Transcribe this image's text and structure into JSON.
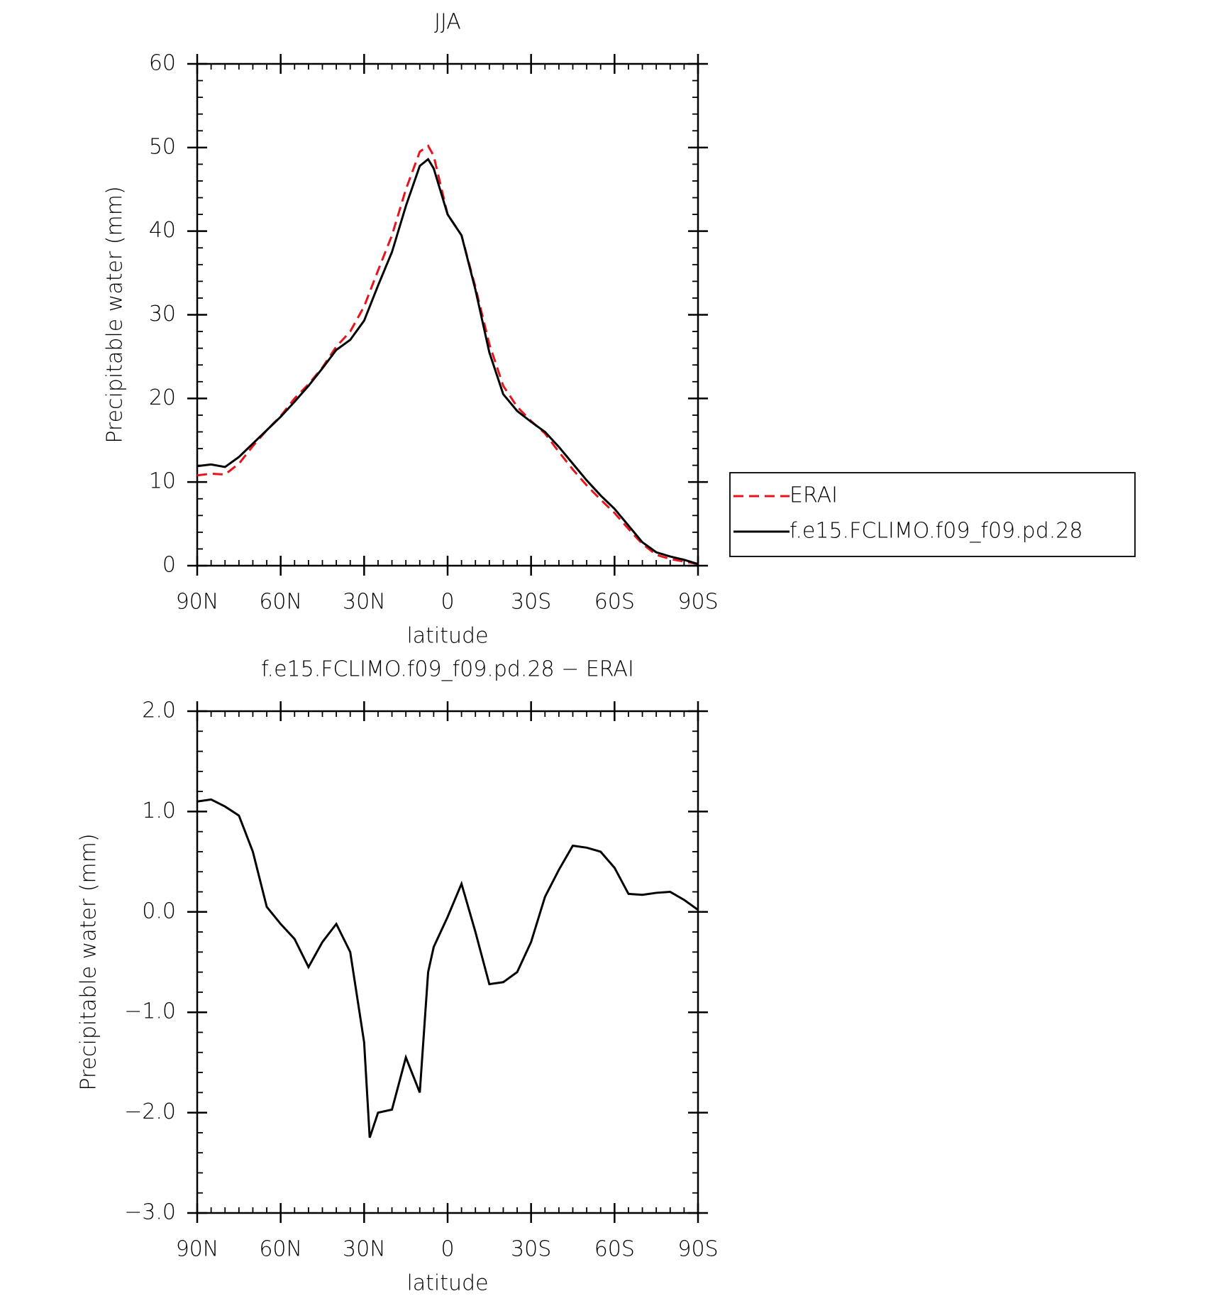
{
  "chart_data": [
    {
      "type": "line",
      "title": "JJA",
      "x_label": "latitude",
      "y_label": "Precipitable water (mm)",
      "x": [
        90,
        85,
        80,
        75,
        70,
        65,
        60,
        55,
        50,
        45,
        40,
        35,
        30,
        25,
        20,
        15,
        10,
        7,
        5,
        0,
        -5,
        -10,
        -15,
        -20,
        -25,
        -30,
        -35,
        -40,
        -45,
        -50,
        -55,
        -60,
        -65,
        -70,
        -75,
        -80,
        -85,
        -90
      ],
      "series": [
        {
          "name": "ERAI",
          "color": "#e8141c",
          "dashed": true,
          "values": [
            10.8,
            11.0,
            10.9,
            12.2,
            14.3,
            16.2,
            17.9,
            20.0,
            21.7,
            23.7,
            26.2,
            28.0,
            31.0,
            35.3,
            39.5,
            45,
            49.5,
            50.2,
            49,
            42,
            39.5,
            33.3,
            26.5,
            21.5,
            19,
            17.3,
            15.8,
            13.6,
            11.5,
            9.6,
            7.9,
            6.3,
            4.4,
            2.6,
            1.3,
            0.8,
            0.5,
            0.2
          ]
        },
        {
          "name": "f.e15.FCLIMO.f09_f09.pd.28",
          "color": "#000000",
          "dashed": false,
          "values": [
            11.9,
            12.1,
            11.8,
            13.0,
            14.6,
            16.2,
            17.8,
            19.6,
            21.5,
            23.6,
            25.8,
            27.0,
            29.3,
            33.5,
            37.5,
            43,
            47.8,
            48.6,
            47.5,
            42,
            39.5,
            33,
            25.5,
            20.5,
            18.5,
            17.2,
            16.0,
            14.2,
            12.2,
            10.2,
            8.4,
            6.8,
            4.8,
            2.8,
            1.6,
            1.1,
            0.7,
            0.2
          ]
        }
      ],
      "xlim": [
        90,
        -90
      ],
      "xticks": [
        {
          "value": 90,
          "label": "90N"
        },
        {
          "value": 60,
          "label": "60N"
        },
        {
          "value": 30,
          "label": "30N"
        },
        0,
        {
          "value": -30,
          "label": "30S"
        },
        {
          "value": -60,
          "label": "60S"
        },
        {
          "value": -90,
          "label": "90S"
        }
      ],
      "ylim": [
        0,
        60
      ],
      "yticks": [
        0,
        10,
        20,
        30,
        40,
        50,
        60
      ],
      "legend": "right"
    },
    {
      "type": "line",
      "title": "f.e15.FCLIMO.f09_f09.pd.28 − ERAI",
      "x_label": "latitude",
      "y_label": "Precipitable water (mm)",
      "x": [
        90,
        85,
        80,
        75,
        70,
        65,
        60,
        55,
        50,
        45,
        40,
        35,
        30,
        28,
        25,
        20,
        15,
        10,
        7,
        5,
        0,
        -5,
        -10,
        -15,
        -20,
        -25,
        -30,
        -35,
        -40,
        -45,
        -50,
        -55,
        -60,
        -65,
        -70,
        -75,
        -80,
        -85,
        -90
      ],
      "color": "#000000",
      "values": [
        1.1,
        1.12,
        1.05,
        0.96,
        0.6,
        0.05,
        -0.12,
        -0.27,
        -0.55,
        -0.3,
        -0.12,
        -0.4,
        -1.3,
        -2.25,
        -2.0,
        -1.97,
        -1.45,
        -1.8,
        -0.6,
        -0.35,
        -0.05,
        0.28,
        -0.2,
        -0.72,
        -0.7,
        -0.6,
        -0.3,
        0.15,
        0.42,
        0.66,
        0.64,
        0.6,
        0.44,
        0.18,
        0.17,
        0.19,
        0.2,
        0.12,
        0.02
      ],
      "xlim": [
        90,
        -90
      ],
      "xticks": [
        {
          "value": 90,
          "label": "90N"
        },
        {
          "value": 60,
          "label": "60N"
        },
        {
          "value": 30,
          "label": "30N"
        },
        0,
        {
          "value": -30,
          "label": "30S"
        },
        {
          "value": -60,
          "label": "60S"
        },
        {
          "value": -90,
          "label": "90S"
        }
      ],
      "ylim": [
        -3,
        2
      ],
      "yticks": [
        {
          "value": -3,
          "label": "−3.0"
        },
        {
          "value": -2,
          "label": "−2.0"
        },
        {
          "value": -1,
          "label": "−1.0"
        },
        {
          "value": 0,
          "label": "0.0"
        },
        {
          "value": 1,
          "label": "1.0"
        },
        {
          "value": 2,
          "label": "2.0"
        }
      ]
    }
  ]
}
